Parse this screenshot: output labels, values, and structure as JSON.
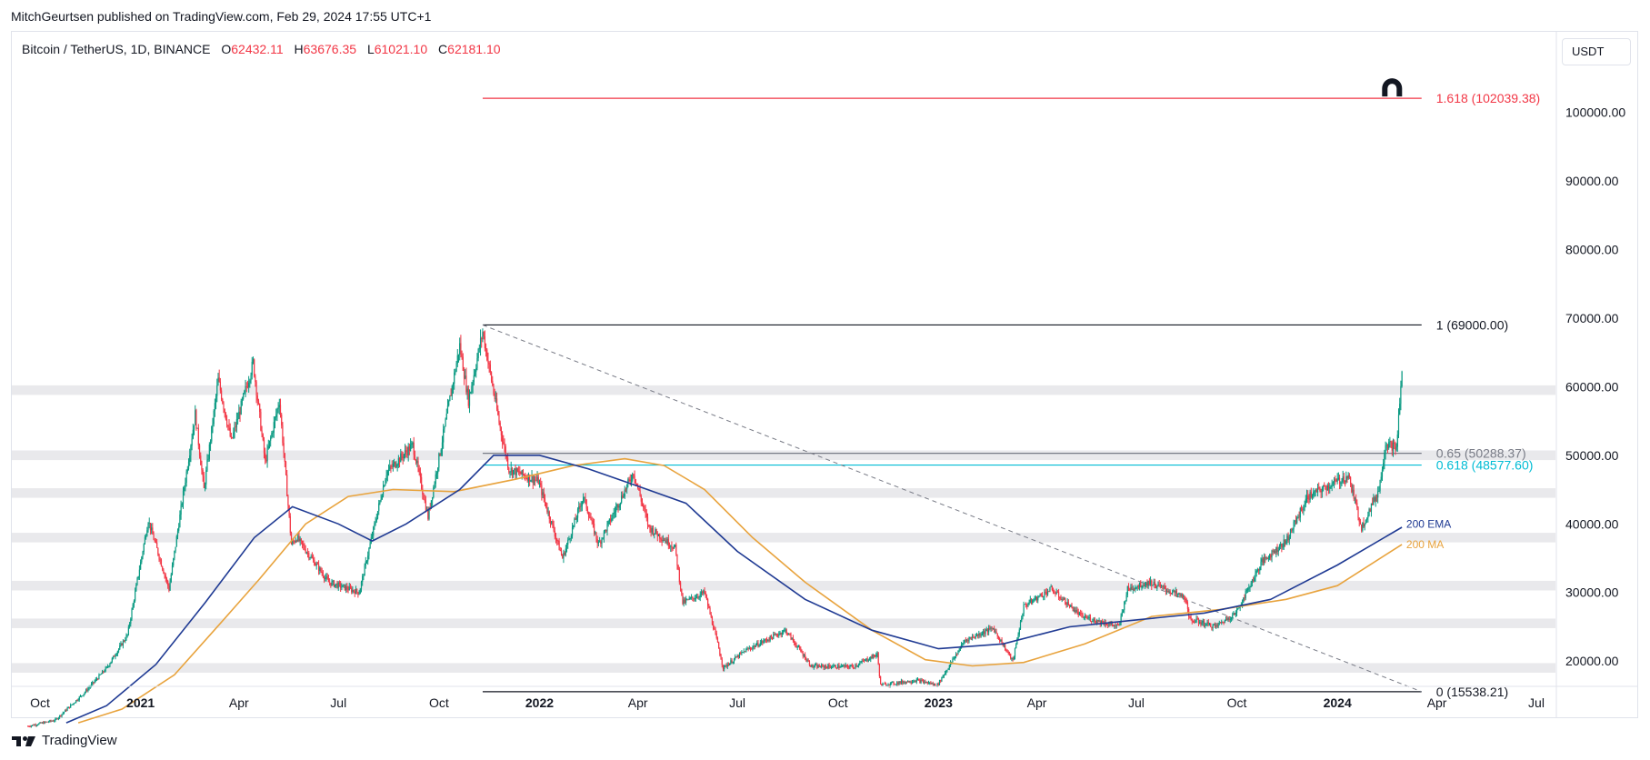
{
  "publisher": {
    "text": "MitchGeurtsen published on TradingView.com, Feb 29, 2024 17:55 UTC+1"
  },
  "legend": {
    "symbol": "Bitcoin / TetherUS, 1D, BINANCE",
    "open_label": "O",
    "open": "62432.11",
    "high_label": "H",
    "high": "63676.35",
    "low_label": "L",
    "low": "61021.10",
    "close_label": "C",
    "close": "62181.10"
  },
  "currency": "USDT",
  "brand": {
    "name": "TradingView",
    "logo": "tradingview-logo-icon"
  },
  "colors": {
    "up": "#089981",
    "down": "#f23645",
    "ema": "#1f3a93",
    "ma": "#e8a33d",
    "fib_top": "#f23645",
    "fib_618": "#00bcd4",
    "fib_065": "#787b86",
    "zone": "#e9e9ec",
    "line": "#131722",
    "trend": "#787b86"
  },
  "chart_data": {
    "type": "candlestick",
    "timeframe": "1D",
    "ylim": [
      13000,
      112000
    ],
    "y_ticks": [
      "20000.00",
      "30000.00",
      "40000.00",
      "50000.00",
      "60000.00",
      "70000.00",
      "80000.00",
      "90000.00",
      "100000.00"
    ],
    "x_ticks": [
      {
        "label": "Oct",
        "date": "2020-10-01",
        "bold": false
      },
      {
        "label": "2021",
        "date": "2021-01-01",
        "bold": true
      },
      {
        "label": "Apr",
        "date": "2021-04-01",
        "bold": false
      },
      {
        "label": "Jul",
        "date": "2021-07-01",
        "bold": false
      },
      {
        "label": "Oct",
        "date": "2021-10-01",
        "bold": false
      },
      {
        "label": "2022",
        "date": "2022-01-01",
        "bold": true
      },
      {
        "label": "Apr",
        "date": "2022-04-01",
        "bold": false
      },
      {
        "label": "Jul",
        "date": "2022-07-01",
        "bold": false
      },
      {
        "label": "Oct",
        "date": "2022-10-01",
        "bold": false
      },
      {
        "label": "2023",
        "date": "2023-01-01",
        "bold": true
      },
      {
        "label": "Apr",
        "date": "2023-04-01",
        "bold": false
      },
      {
        "label": "Jul",
        "date": "2023-07-01",
        "bold": false
      },
      {
        "label": "Oct",
        "date": "2023-10-01",
        "bold": false
      },
      {
        "label": "2024",
        "date": "2024-01-01",
        "bold": true
      },
      {
        "label": "Apr",
        "date": "2024-04-01",
        "bold": false
      },
      {
        "label": "Jul",
        "date": "2024-07-01",
        "bold": false
      }
    ],
    "price_path": [
      [
        "2020-09-20",
        10500
      ],
      [
        "2020-10-15",
        11400
      ],
      [
        "2020-11-10",
        15300
      ],
      [
        "2020-12-01",
        19000
      ],
      [
        "2020-12-20",
        23800
      ],
      [
        "2021-01-08",
        40500
      ],
      [
        "2021-01-27",
        30500
      ],
      [
        "2021-02-20",
        56000
      ],
      [
        "2021-02-28",
        45000
      ],
      [
        "2021-03-13",
        61000
      ],
      [
        "2021-03-25",
        52000
      ],
      [
        "2021-04-14",
        63500
      ],
      [
        "2021-04-25",
        49000
      ],
      [
        "2021-05-08",
        58000
      ],
      [
        "2021-05-19",
        37000
      ],
      [
        "2021-05-24",
        38000
      ],
      [
        "2021-06-22",
        31500
      ],
      [
        "2021-07-20",
        30000
      ],
      [
        "2021-08-14",
        47500
      ],
      [
        "2021-09-07",
        51500
      ],
      [
        "2021-09-21",
        41000
      ],
      [
        "2021-10-20",
        66000
      ],
      [
        "2021-10-28",
        58000
      ],
      [
        "2021-11-10",
        68000
      ],
      [
        "2021-11-26",
        54000
      ],
      [
        "2021-12-04",
        48000
      ],
      [
        "2021-12-31",
        46200
      ],
      [
        "2022-01-22",
        35000
      ],
      [
        "2022-02-10",
        44000
      ],
      [
        "2022-02-24",
        37000
      ],
      [
        "2022-03-28",
        47500
      ],
      [
        "2022-04-11",
        39500
      ],
      [
        "2022-05-05",
        36500
      ],
      [
        "2022-05-12",
        28500
      ],
      [
        "2022-06-01",
        30000
      ],
      [
        "2022-06-13",
        22500
      ],
      [
        "2022-06-18",
        19000
      ],
      [
        "2022-07-08",
        21500
      ],
      [
        "2022-08-14",
        24500
      ],
      [
        "2022-09-07",
        19200
      ],
      [
        "2022-10-15",
        19200
      ],
      [
        "2022-11-06",
        21000
      ],
      [
        "2022-11-09",
        16500
      ],
      [
        "2022-12-12",
        17200
      ],
      [
        "2022-12-31",
        16500
      ],
      [
        "2023-01-25",
        23000
      ],
      [
        "2023-02-20",
        24800
      ],
      [
        "2023-03-10",
        20000
      ],
      [
        "2023-03-20",
        28000
      ],
      [
        "2023-04-14",
        30500
      ],
      [
        "2023-05-12",
        26500
      ],
      [
        "2023-06-15",
        25000
      ],
      [
        "2023-06-23",
        30500
      ],
      [
        "2023-07-13",
        31500
      ],
      [
        "2023-08-15",
        29200
      ],
      [
        "2023-08-18",
        26200
      ],
      [
        "2023-09-11",
        25000
      ],
      [
        "2023-09-30",
        27000
      ],
      [
        "2023-10-24",
        34500
      ],
      [
        "2023-11-15",
        37500
      ],
      [
        "2023-12-05",
        44000
      ],
      [
        "2024-01-11",
        47000
      ],
      [
        "2024-01-23",
        39500
      ],
      [
        "2024-02-08",
        45000
      ],
      [
        "2024-02-14",
        51800
      ],
      [
        "2024-02-24",
        51000
      ],
      [
        "2024-02-29",
        62181
      ]
    ],
    "ema200": [
      [
        "2020-10-25",
        11000
      ],
      [
        "2020-12-01",
        13500
      ],
      [
        "2021-01-15",
        19500
      ],
      [
        "2021-03-01",
        28500
      ],
      [
        "2021-04-15",
        38000
      ],
      [
        "2021-05-20",
        42500
      ],
      [
        "2021-07-01",
        40000
      ],
      [
        "2021-08-01",
        37500
      ],
      [
        "2021-09-01",
        40000
      ],
      [
        "2021-10-20",
        45000
      ],
      [
        "2021-11-20",
        50000
      ],
      [
        "2022-01-01",
        50000
      ],
      [
        "2022-02-15",
        48000
      ],
      [
        "2022-04-01",
        45500
      ],
      [
        "2022-05-15",
        43000
      ],
      [
        "2022-07-01",
        36000
      ],
      [
        "2022-09-01",
        29000
      ],
      [
        "2022-11-01",
        24500
      ],
      [
        "2023-01-01",
        21800
      ],
      [
        "2023-03-01",
        22500
      ],
      [
        "2023-05-01",
        25000
      ],
      [
        "2023-07-01",
        26000
      ],
      [
        "2023-09-01",
        27000
      ],
      [
        "2023-11-01",
        29000
      ],
      [
        "2024-01-01",
        34000
      ],
      [
        "2024-02-29",
        39500
      ]
    ],
    "ma200": [
      [
        "2020-11-05",
        11000
      ],
      [
        "2020-12-15",
        13000
      ],
      [
        "2021-02-01",
        18000
      ],
      [
        "2021-03-15",
        25500
      ],
      [
        "2021-04-20",
        32000
      ],
      [
        "2021-06-01",
        40000
      ],
      [
        "2021-07-10",
        44000
      ],
      [
        "2021-08-20",
        45000
      ],
      [
        "2021-10-15",
        44700
      ],
      [
        "2021-12-10",
        46500
      ],
      [
        "2022-02-01",
        48500
      ],
      [
        "2022-03-20",
        49500
      ],
      [
        "2022-04-25",
        48500
      ],
      [
        "2022-06-01",
        45000
      ],
      [
        "2022-07-15",
        38000
      ],
      [
        "2022-09-01",
        31500
      ],
      [
        "2022-11-01",
        24500
      ],
      [
        "2022-12-20",
        20200
      ],
      [
        "2023-02-01",
        19300
      ],
      [
        "2023-03-20",
        19800
      ],
      [
        "2023-05-15",
        22500
      ],
      [
        "2023-07-15",
        26500
      ],
      [
        "2023-09-15",
        27500
      ],
      [
        "2023-11-15",
        29000
      ],
      [
        "2024-01-01",
        31000
      ],
      [
        "2024-02-29",
        37000
      ]
    ],
    "series_labels": [
      {
        "name": "200 EMA",
        "color": "ema",
        "price": 40000
      },
      {
        "name": "200 MA",
        "color": "ma",
        "price": 37000
      }
    ],
    "fib_levels": [
      {
        "label": "1.618 (102039.38)",
        "price": 102039.38,
        "color": "fib_top"
      },
      {
        "label": "1 (69000.00)",
        "price": 69000.0,
        "color": "line"
      },
      {
        "label": "0.65 (50288.37)",
        "price": 50288.37,
        "color": "fib_065"
      },
      {
        "label": "0.618 (48577.60)",
        "price": 48577.6,
        "color": "fib_618"
      },
      {
        "label": "0 (15538.21)",
        "price": 15538.21,
        "color": "line"
      }
    ],
    "fib_start": "2021-11-10",
    "fib_end": "2024-03-18",
    "trendline": {
      "from": [
        "2021-11-10",
        69000
      ],
      "to": [
        "2024-03-18",
        15538.21
      ]
    },
    "support_zones": [
      59500,
      50000,
      44500,
      38000,
      31000,
      25500,
      19000
    ],
    "zone_half_height": 700
  }
}
